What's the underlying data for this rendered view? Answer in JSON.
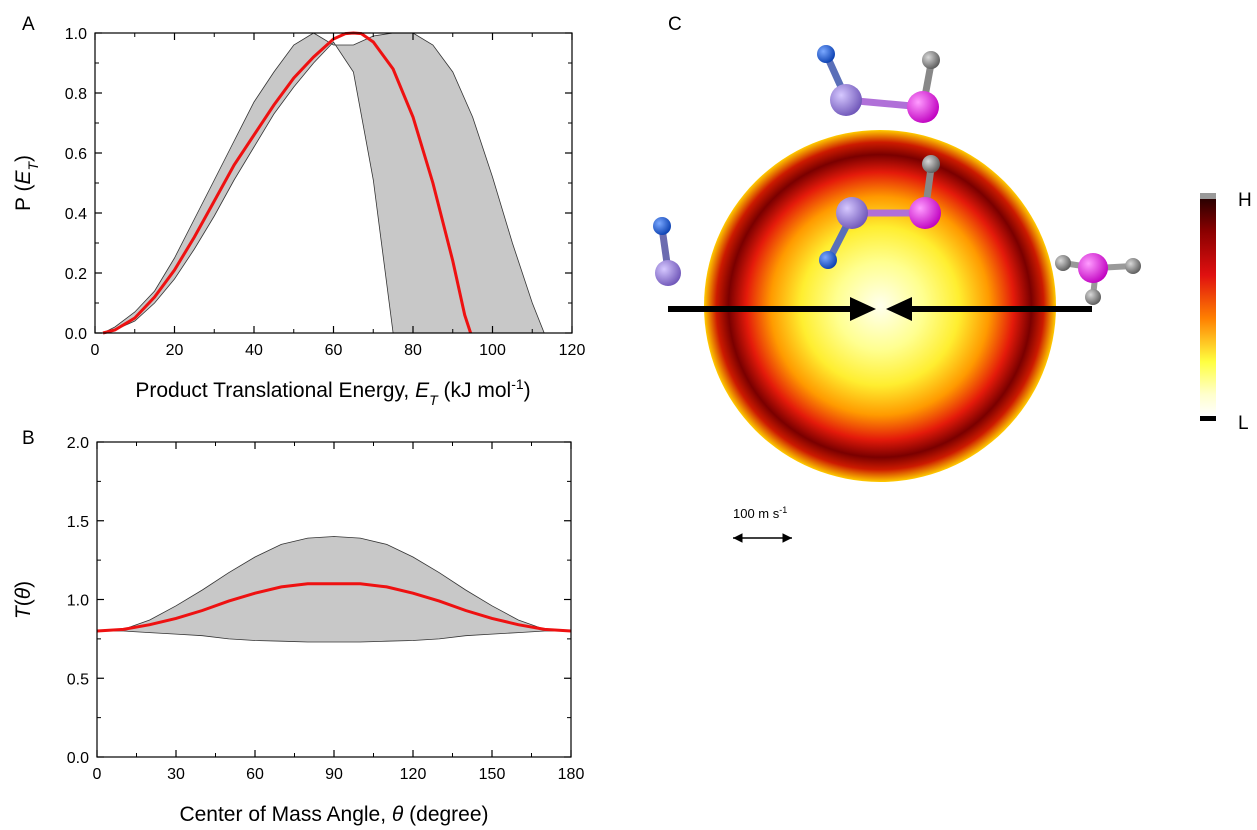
{
  "panels": {
    "a": "A",
    "b": "B",
    "c": "C"
  },
  "chart_data": [
    {
      "type": "line",
      "panel": "A",
      "xlabel_parts": [
        "Product Translational Energy, ",
        "E",
        "T",
        " (kJ mol",
        "-1",
        ")"
      ],
      "ylabel_parts": [
        "P (",
        "E",
        "T",
        ")"
      ],
      "xlim": [
        0,
        120
      ],
      "ylim": [
        0,
        1.0
      ],
      "xticks": [
        "0",
        "20",
        "40",
        "60",
        "80",
        "100",
        "120"
      ],
      "yticks": [
        "0.0",
        "0.2",
        "0.4",
        "0.6",
        "0.8",
        "1.0"
      ],
      "band_upper": {
        "x": [
          2,
          5,
          10,
          15,
          20,
          25,
          30,
          35,
          40,
          45,
          50,
          55,
          60,
          65,
          70,
          75,
          80,
          85,
          90,
          95,
          100,
          105,
          110,
          113
        ],
        "y": [
          0,
          0.02,
          0.07,
          0.14,
          0.25,
          0.38,
          0.51,
          0.64,
          0.77,
          0.87,
          0.96,
          1.0,
          0.96,
          0.96,
          0.99,
          1.0,
          1.0,
          0.96,
          0.87,
          0.72,
          0.52,
          0.3,
          0.1,
          0
        ]
      },
      "band_lower": {
        "x": [
          2,
          5,
          10,
          15,
          20,
          25,
          30,
          35,
          40,
          45,
          50,
          55,
          60,
          65,
          70,
          75
        ],
        "y": [
          0,
          0.01,
          0.04,
          0.1,
          0.18,
          0.28,
          0.39,
          0.51,
          0.62,
          0.73,
          0.82,
          0.9,
          0.97,
          0.87,
          0.51,
          0
        ]
      },
      "series": [
        {
          "color": "#ee1111",
          "x": [
            2,
            5,
            10,
            15,
            20,
            25,
            30,
            35,
            40,
            45,
            50,
            55,
            60,
            63,
            65,
            67,
            70,
            75,
            80,
            85,
            90,
            93,
            94.5
          ],
          "y": [
            0,
            0.01,
            0.05,
            0.12,
            0.21,
            0.32,
            0.44,
            0.56,
            0.66,
            0.76,
            0.85,
            0.92,
            0.98,
            0.998,
            1.0,
            0.998,
            0.97,
            0.88,
            0.72,
            0.5,
            0.24,
            0.06,
            0
          ]
        }
      ]
    },
    {
      "type": "line",
      "panel": "B",
      "xlabel_parts": [
        "Center of Mass Angle, ",
        "θ",
        " (degree)"
      ],
      "ylabel_parts": [
        "T",
        "(",
        "θ",
        ")"
      ],
      "xlim": [
        0,
        180
      ],
      "ylim": [
        0,
        2.0
      ],
      "xticks": [
        "0",
        "30",
        "60",
        "90",
        "120",
        "150",
        "180"
      ],
      "yticks": [
        "0.0",
        "0.5",
        "1.0",
        "1.5",
        "2.0"
      ],
      "band_upper": {
        "x": [
          0,
          10,
          20,
          30,
          40,
          50,
          60,
          70,
          80,
          90,
          100,
          110,
          120,
          130,
          140,
          150,
          160,
          170,
          180
        ],
        "y": [
          0.8,
          0.81,
          0.87,
          0.96,
          1.06,
          1.17,
          1.27,
          1.35,
          1.39,
          1.4,
          1.39,
          1.35,
          1.27,
          1.17,
          1.06,
          0.96,
          0.87,
          0.81,
          0.8
        ]
      },
      "band_lower": {
        "x": [
          0,
          10,
          20,
          30,
          40,
          50,
          60,
          70,
          80,
          90,
          100,
          110,
          120,
          130,
          140,
          150,
          160,
          170,
          180
        ],
        "y": [
          0.8,
          0.8,
          0.79,
          0.78,
          0.77,
          0.75,
          0.74,
          0.735,
          0.73,
          0.73,
          0.73,
          0.735,
          0.74,
          0.75,
          0.77,
          0.78,
          0.79,
          0.8,
          0.8
        ]
      },
      "series": [
        {
          "color": "#ee1111",
          "x": [
            0,
            10,
            20,
            30,
            40,
            50,
            60,
            70,
            80,
            90,
            100,
            110,
            120,
            130,
            140,
            150,
            160,
            170,
            180
          ],
          "y": [
            0.8,
            0.81,
            0.84,
            0.88,
            0.93,
            0.99,
            1.04,
            1.08,
            1.1,
            1.1,
            1.1,
            1.08,
            1.04,
            0.99,
            0.93,
            0.88,
            0.84,
            0.81,
            0.8
          ]
        }
      ]
    },
    {
      "type": "heatmap",
      "panel": "C",
      "colorbar": {
        "high": "H",
        "low": "L",
        "colors": [
          "#2b0000",
          "#8b0000",
          "#e01010",
          "#ff8000",
          "#ffff40",
          "#ffffcc",
          "#ffffff"
        ]
      },
      "scale_bar_parts": [
        "100 m s",
        "-1"
      ],
      "colors": {
        "band": "#c8c8c8",
        "curve": "#ee1111",
        "blue_atom": "#1f5bd6",
        "purple_atom": "#9a7fd8",
        "magenta_atom": "#ee11ee",
        "gray_atom": "#8c8c8c"
      }
    }
  ]
}
